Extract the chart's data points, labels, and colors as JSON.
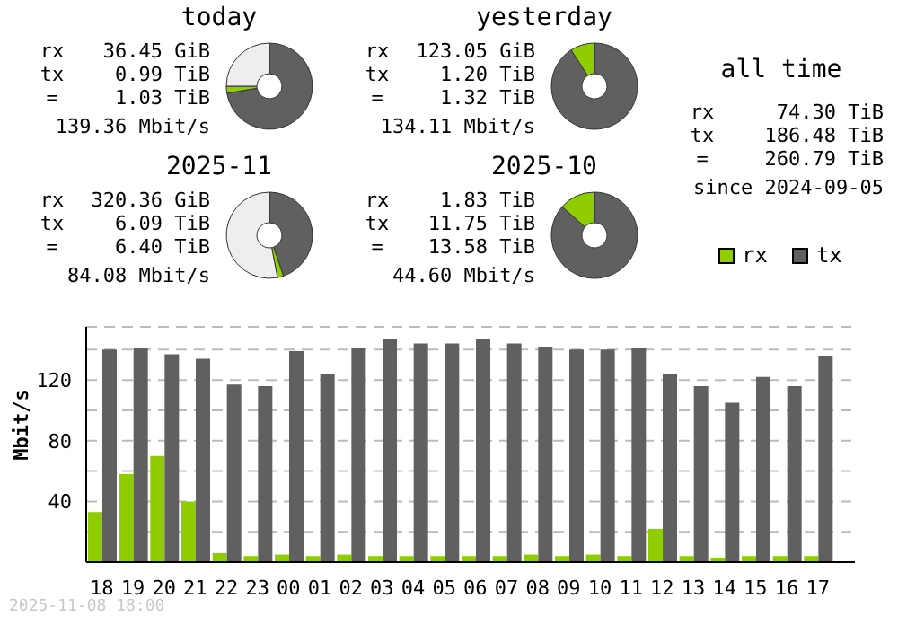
{
  "chart_data": [
    {
      "type": "donut",
      "title": "today",
      "categories": [
        null,
        null,
        null
      ],
      "values": [
        72.4,
        2.6,
        25
      ],
      "colors": [
        "#606060",
        "#8fcc00",
        "#eeeeee"
      ],
      "annotations": [
        "rx",
        "36.45 GiB",
        "tx",
        "0.99 TiB",
        "=",
        "1.03 TiB",
        "139.36 Mbit/s"
      ]
    },
    {
      "type": "donut",
      "title": "yesterday",
      "categories": [
        null,
        null
      ],
      "values": [
        90.9,
        9.1
      ],
      "colors": [
        "#606060",
        "#8fcc00"
      ],
      "annotations": [
        "rx",
        "123.05 GiB",
        "tx",
        "1.20 TiB",
        "=",
        "1.32 TiB",
        "134.11 Mbit/s"
      ]
    },
    {
      "type": "other",
      "title": "all time",
      "annotations": [
        "rx",
        "74.30 TiB",
        "tx",
        "186.48 TiB",
        "=",
        "260.79 TiB",
        "since 2024-09-05"
      ]
    },
    {
      "type": "donut",
      "title": "2025-11",
      "categories": [
        null,
        null,
        null
      ],
      "values": [
        44.7,
        2.3,
        53
      ],
      "colors": [
        "#606060",
        "#8fcc00",
        "#eeeeee"
      ],
      "annotations": [
        "rx",
        "320.36 GiB",
        "tx",
        "6.09 TiB",
        "=",
        "6.40 TiB",
        "84.08 Mbit/s"
      ]
    },
    {
      "type": "donut",
      "title": "2025-10",
      "categories": [
        null,
        null
      ],
      "values": [
        86.5,
        13.5
      ],
      "colors": [
        "#606060",
        "#8fcc00"
      ],
      "annotations": [
        "rx",
        "1.83 TiB",
        "tx",
        "11.75 TiB",
        "=",
        "13.58 TiB",
        "44.60 Mbit/s"
      ]
    },
    {
      "type": "bar",
      "ylabel": "Mbit/s",
      "legend": "top right",
      "grid": "y",
      "categories": [
        "18",
        "19",
        "20",
        "21",
        "22",
        "23",
        "00",
        "01",
        "02",
        "03",
        "04",
        "05",
        "06",
        "07",
        "08",
        "09",
        "10",
        "11",
        "12",
        "13",
        "14",
        "15",
        "16",
        "17"
      ],
      "series": [
        {
          "name": "rx",
          "color": "#8fcc00",
          "values": [
            33,
            58,
            70,
            40,
            6,
            4,
            5,
            4,
            5,
            4,
            4,
            4,
            4,
            4,
            5,
            4,
            5,
            4,
            22,
            4,
            3,
            4,
            4,
            4
          ]
        },
        {
          "name": "tx",
          "color": "#606060",
          "values": [
            140,
            141,
            137,
            134,
            117,
            116,
            139,
            124,
            141,
            147,
            144,
            144,
            147,
            144,
            142,
            140,
            140,
            141,
            124,
            116,
            105,
            122,
            116,
            136
          ]
        }
      ],
      "ylim": [
        0,
        155
      ],
      "yticks": [
        {
          "value": 20,
          "label": null
        },
        40,
        {
          "value": 60,
          "label": null
        },
        80,
        {
          "value": 100,
          "label": null
        },
        120,
        {
          "value": 140,
          "label": null
        }
      ],
      "annotations": [
        "2025-11-08 18:00"
      ]
    }
  ]
}
